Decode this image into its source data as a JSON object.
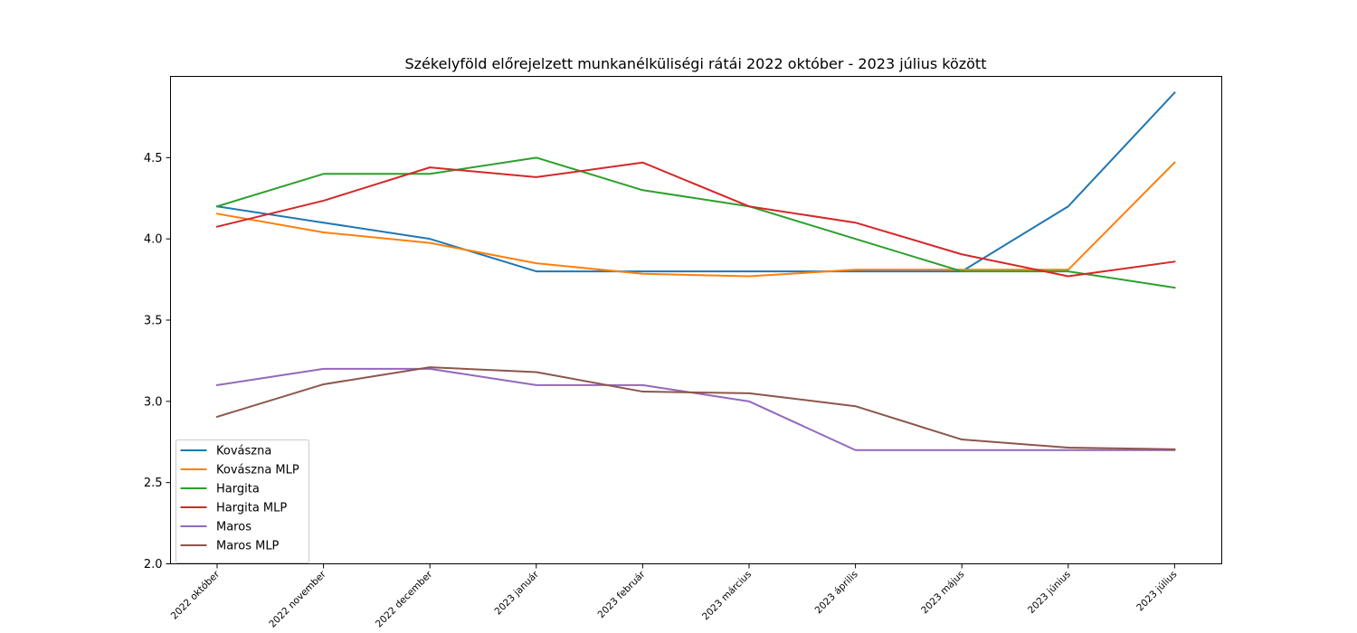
{
  "chart_data": {
    "type": "line",
    "title": "Székelyföld előrejelzett munkanélküliségi rátái 2022 október - 2023 július között",
    "xlabel": "",
    "ylabel": "",
    "categories": [
      "2022 október",
      "2022 november",
      "2022 december",
      "2023 január",
      "2023 február",
      "2023 március",
      "2023 április",
      "2023 május",
      "2023 június",
      "2023 július"
    ],
    "ylim": [
      2.0,
      5.0
    ],
    "yticks": [
      2.0,
      2.5,
      3.0,
      3.5,
      4.0,
      4.5
    ],
    "ytick_labels": [
      "2.0",
      "2.5",
      "3.0",
      "3.5",
      "4.0",
      "4.5"
    ],
    "grid": false,
    "legend_position": "lower-left",
    "series": [
      {
        "name": "Kovászna",
        "color": "#1f77b4",
        "values": [
          4.2,
          4.1,
          4.0,
          3.8,
          3.8,
          3.8,
          3.8,
          3.8,
          4.2,
          4.9
        ]
      },
      {
        "name": "Kovászna MLP",
        "color": "#ff7f0e",
        "values": [
          4.155,
          4.04,
          3.975,
          3.85,
          3.785,
          3.77,
          3.81,
          3.81,
          3.81,
          4.47
        ]
      },
      {
        "name": "Hargita",
        "color": "#2ca02c",
        "values": [
          4.2,
          4.4,
          4.4,
          4.5,
          4.3,
          4.2,
          4.0,
          3.8,
          3.8,
          3.7
        ]
      },
      {
        "name": "Hargita MLP",
        "color": "#d62728",
        "values": [
          4.075,
          4.235,
          4.44,
          4.38,
          4.47,
          4.2,
          4.1,
          3.905,
          3.77,
          3.86
        ]
      },
      {
        "name": "Maros",
        "color": "#9467bd",
        "values": [
          3.1,
          3.2,
          3.2,
          3.1,
          3.1,
          3.0,
          2.7,
          2.7,
          2.7,
          2.7
        ]
      },
      {
        "name": "Maros MLP",
        "color": "#8c564b",
        "values": [
          2.905,
          3.105,
          3.21,
          3.18,
          3.06,
          3.05,
          2.97,
          2.765,
          2.715,
          2.705
        ]
      }
    ]
  }
}
